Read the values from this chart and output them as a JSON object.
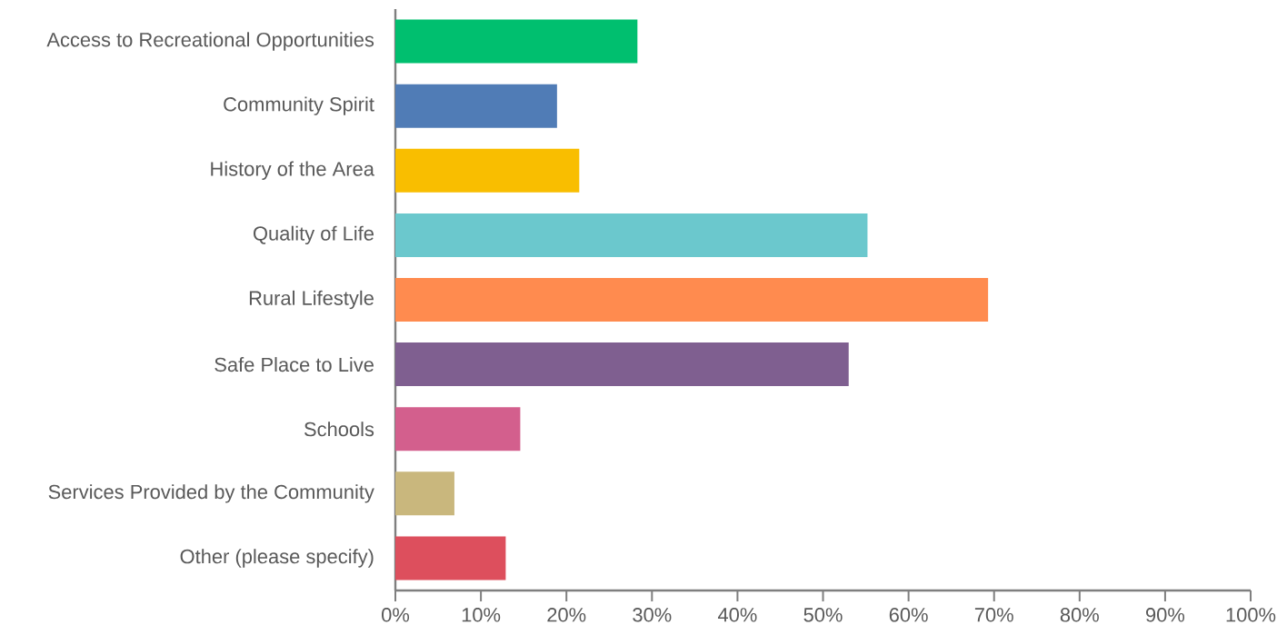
{
  "chart_data": {
    "type": "bar",
    "orientation": "horizontal",
    "categories": [
      "Access to Recreational Opportunities",
      "Community Spirit",
      "History of the Area",
      "Quality of Life",
      "Rural Lifestyle",
      "Safe Place to Live",
      "Schools",
      "Services Provided by the Community",
      "Other (please specify)"
    ],
    "values": [
      28.3,
      18.9,
      21.5,
      55.2,
      69.3,
      53.0,
      14.6,
      6.9,
      12.9
    ],
    "colors": [
      "#00bf6f",
      "#507cb6",
      "#f9be00",
      "#6bc8cd",
      "#ff8b4f",
      "#7f5f90",
      "#d35f8d",
      "#c9b77d",
      "#dd4f5d"
    ],
    "xlim": [
      0,
      100
    ],
    "xticks": [
      {
        "value": 0,
        "label": "0%"
      },
      {
        "value": 10,
        "label": "10%"
      },
      {
        "value": 20,
        "label": "20%"
      },
      {
        "value": 30,
        "label": "30%"
      },
      {
        "value": 40,
        "label": "40%"
      },
      {
        "value": 50,
        "label": "50%"
      },
      {
        "value": 60,
        "label": "60%"
      },
      {
        "value": 70,
        "label": "70%"
      },
      {
        "value": 80,
        "label": "80%"
      },
      {
        "value": 90,
        "label": "90%"
      },
      {
        "value": 100,
        "label": "100%"
      }
    ]
  }
}
